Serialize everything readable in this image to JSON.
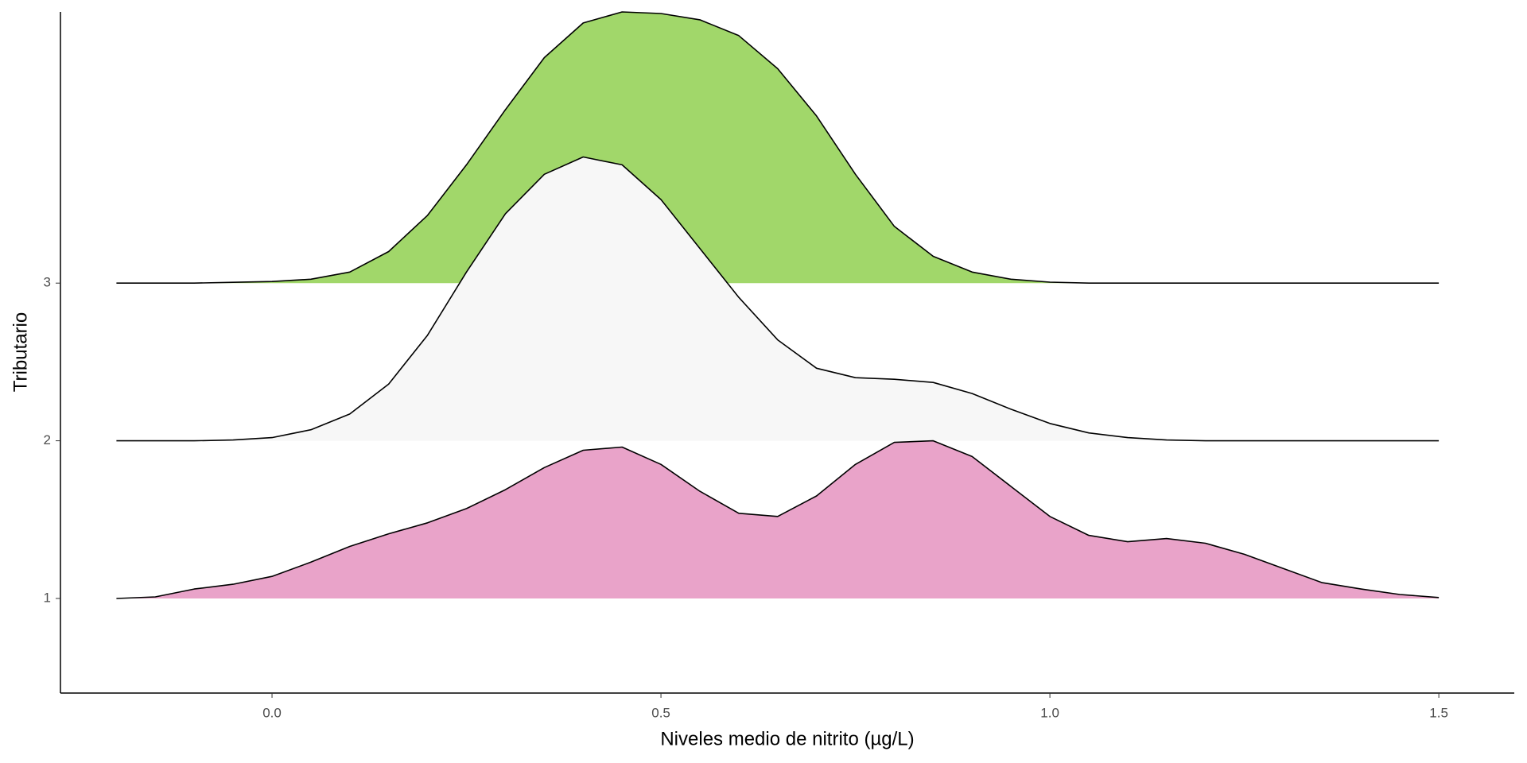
{
  "chart_data": {
    "type": "ridgeline",
    "xlabel": "Niveles medio de nitrito (µg/L)",
    "ylabel": "Tributario",
    "xlim": [
      -0.272,
      1.597
    ],
    "xticks": [
      {
        "value": 0,
        "label": "0.0"
      },
      0.5,
      {
        "value": 1,
        "label": "1.0"
      },
      1.5
    ],
    "ylim": [
      0.4,
      4.72
    ],
    "yticks": [
      1,
      2,
      3
    ],
    "x": [
      -0.2,
      -0.15,
      -0.1,
      -0.05,
      0,
      0.05,
      0.1,
      0.15,
      0.2,
      0.25,
      0.3,
      0.35,
      0.4,
      0.45,
      0.5,
      0.55,
      0.6,
      0.65,
      0.7,
      0.75,
      0.8,
      0.85,
      0.9,
      0.95,
      1.0,
      1.05,
      1.1,
      1.15,
      1.2,
      1.25,
      1.3,
      1.35,
      1.4,
      1.45,
      1.5
    ],
    "series": [
      {
        "baseline": 3,
        "color": "#a1d76a",
        "values": [
          0,
          0,
          0,
          0.005,
          0.01,
          0.025,
          0.07,
          0.2,
          0.43,
          0.75,
          1.1,
          1.43,
          1.65,
          1.72,
          1.71,
          1.67,
          1.57,
          1.36,
          1.06,
          0.69,
          0.36,
          0.17,
          0.07,
          0.025,
          0.006,
          0,
          0,
          0,
          0,
          0,
          0,
          0,
          0,
          0,
          0
        ]
      },
      {
        "baseline": 2,
        "color": "#f7f7f7",
        "values": [
          0,
          0,
          0,
          0.005,
          0.02,
          0.07,
          0.17,
          0.36,
          0.67,
          1.07,
          1.44,
          1.69,
          1.8,
          1.75,
          1.53,
          1.22,
          0.91,
          0.64,
          0.46,
          0.4,
          0.39,
          0.37,
          0.3,
          0.2,
          0.11,
          0.05,
          0.02,
          0.005,
          0,
          0,
          0,
          0,
          0,
          0,
          0
        ]
      },
      {
        "baseline": 1,
        "color": "#e9a3c9",
        "values": [
          0,
          0.01,
          0.06,
          0.09,
          0.14,
          0.23,
          0.33,
          0.41,
          0.48,
          0.57,
          0.69,
          0.83,
          0.94,
          0.96,
          0.85,
          0.68,
          0.54,
          0.52,
          0.65,
          0.85,
          0.99,
          1.0,
          0.9,
          0.71,
          0.52,
          0.4,
          0.36,
          0.38,
          0.35,
          0.28,
          0.19,
          0.1,
          0.06,
          0.025,
          0.006
        ]
      }
    ]
  }
}
